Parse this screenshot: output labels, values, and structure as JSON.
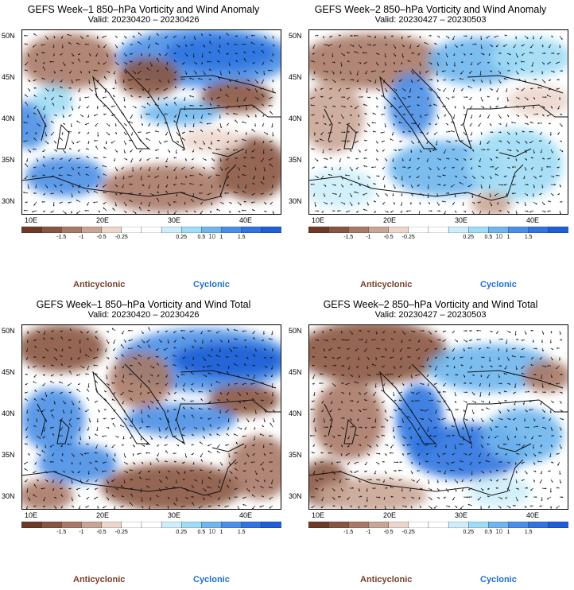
{
  "panels": [
    {
      "title": "GEFS Week–1 850–hPa Vorticity and Wind Anomaly",
      "valid": "Valid: 20230420 – 20230426",
      "pattern": 1
    },
    {
      "title": "GEFS Week–2 850–hPa Vorticity and Wind Anomaly",
      "valid": "Valid: 20230427 – 20230503",
      "pattern": 2
    },
    {
      "title": "GEFS Week–1 850–hPa Vorticity and Wind Total",
      "valid": "Valid: 20230420 – 20230426",
      "pattern": 3
    },
    {
      "title": "GEFS Week–2 850–hPa Vorticity and Wind Total",
      "valid": "Valid: 20230427 – 20230503",
      "pattern": 4
    }
  ],
  "lat_labels": [
    "50N",
    "45N",
    "40N",
    "35N",
    "30N"
  ],
  "lon_labels": [
    "10E",
    "20E",
    "30E",
    "40E"
  ],
  "colorbar": {
    "labels": [
      "-1.5",
      "-1",
      "-0.5",
      "-0.25",
      "0.25",
      "0.5",
      "1",
      "1.5"
    ],
    "scale": "10",
    "colors": [
      "#6e3a26",
      "#8a5540",
      "#a87966",
      "#c9a595",
      "#ecd6cc",
      "#ffffff",
      "#ffffff",
      "#cdeefa",
      "#9fdcf5",
      "#6fb6ee",
      "#4a8fe6",
      "#2f74e0",
      "#1e5fd6"
    ]
  },
  "legend": {
    "negative": "Anticyclonic",
    "positive": "Cyclonic"
  },
  "colors": {
    "anticyclonic": "#7a3e28",
    "cyclonic": "#1f6ed8"
  }
}
